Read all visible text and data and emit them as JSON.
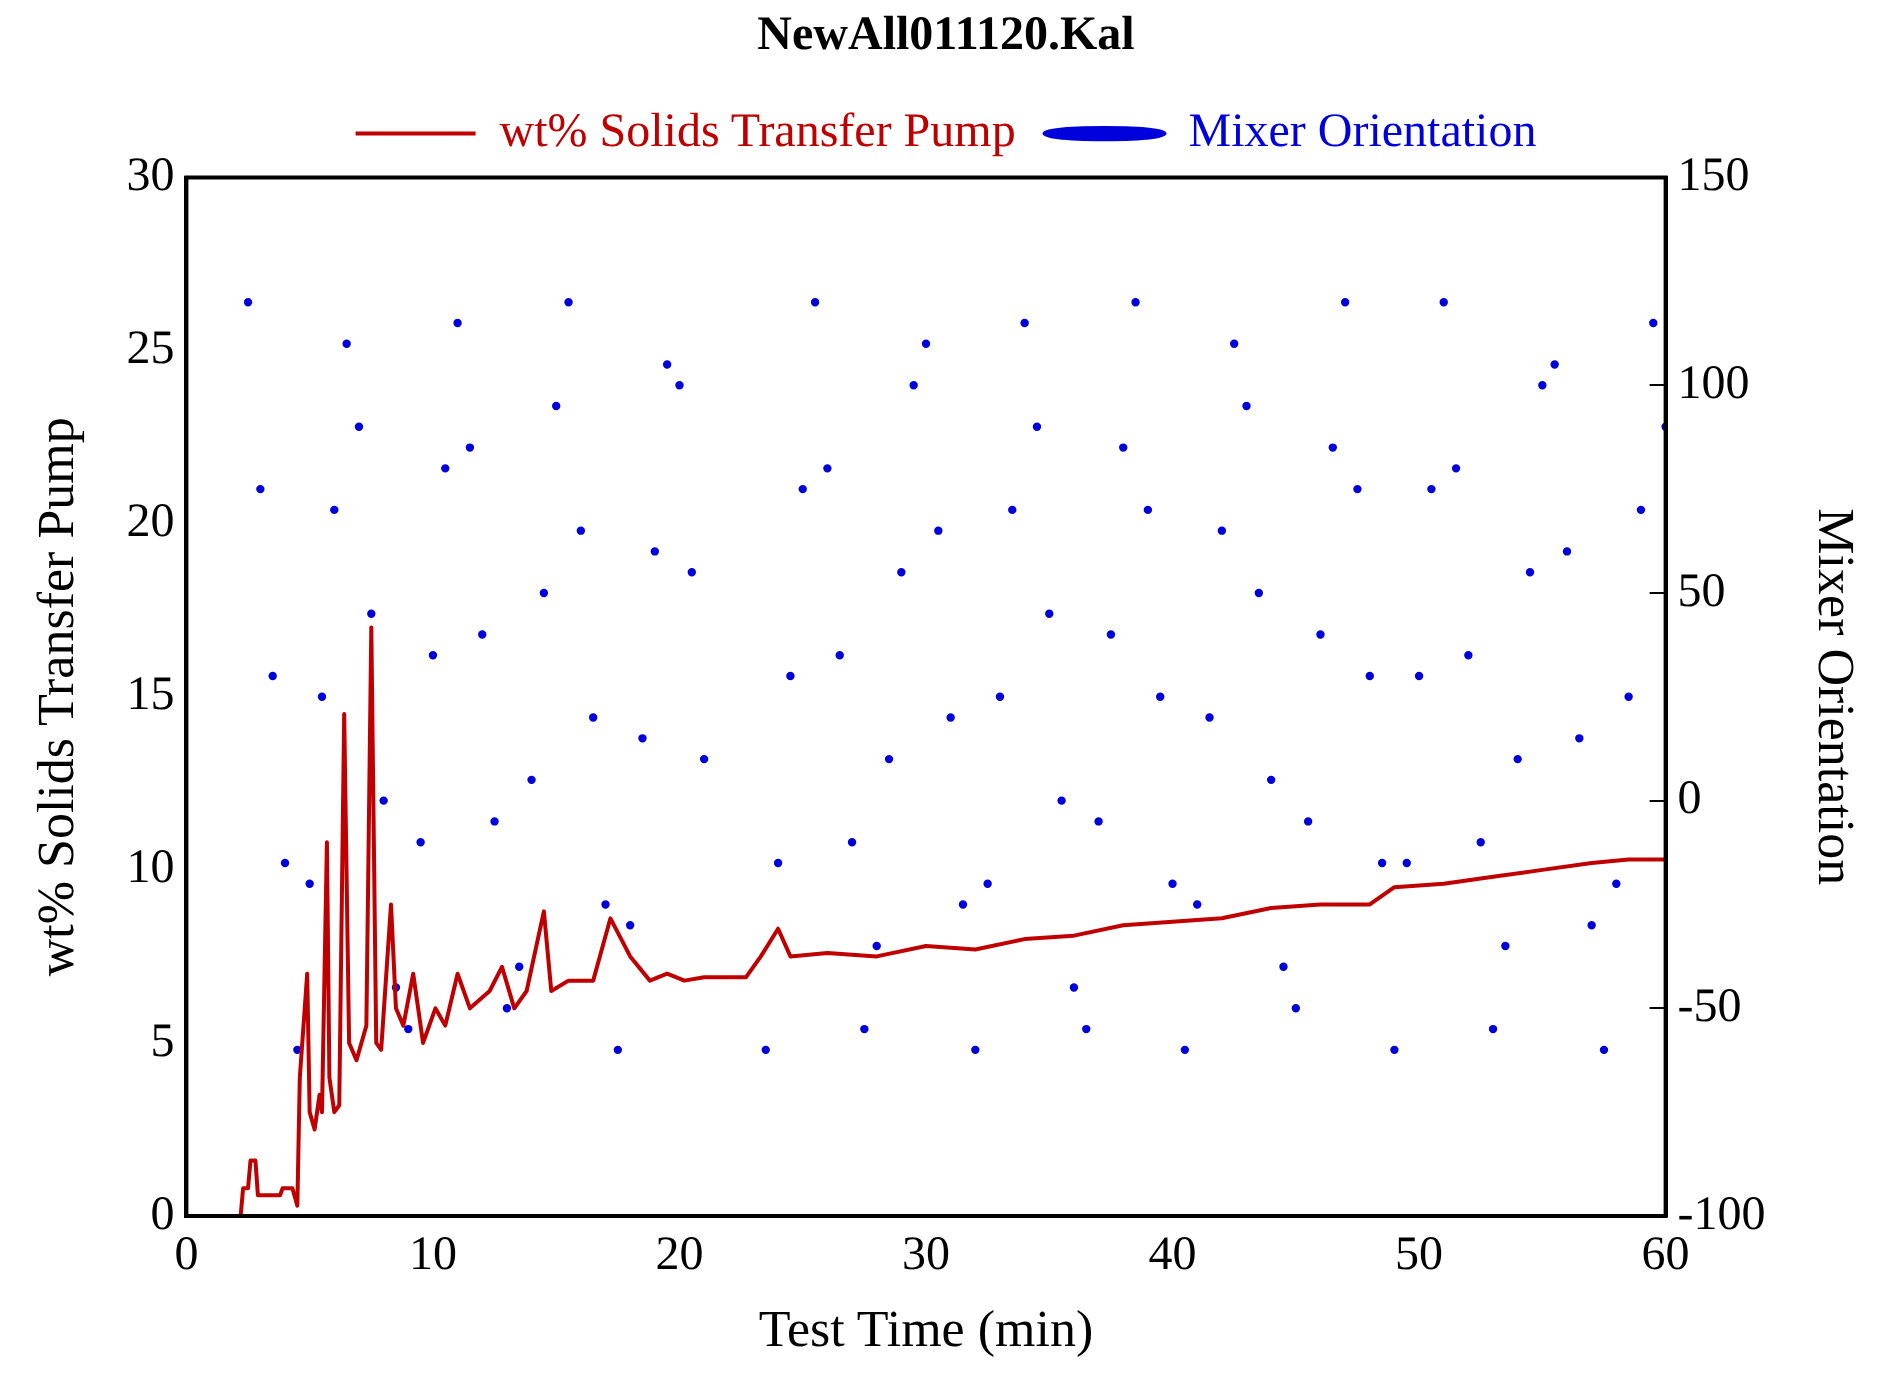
{
  "chart_data": {
    "type": "line",
    "title": "NewAll011120.Kal",
    "xlabel": "Test Time (min)",
    "ylabel": "wt% Solids Transfer Pump",
    "y2label": "Mixer Orientation",
    "xlim": [
      0,
      60
    ],
    "xticks": [
      0,
      10,
      20,
      30,
      40,
      50,
      60
    ],
    "ylim": [
      0,
      30
    ],
    "yticks": [
      0,
      5,
      10,
      15,
      20,
      25,
      30
    ],
    "y2lim": [
      -100,
      150
    ],
    "y2ticks": [
      -100,
      -50,
      0,
      50,
      100,
      150
    ],
    "grid": false,
    "legend": "top",
    "series": [
      {
        "name": "wt% Solids Transfer Pump",
        "color": "#c00000",
        "marker": "none",
        "line_style": "solid",
        "x": [
          2.0,
          2.2,
          2.3,
          2.5,
          2.6,
          2.8,
          2.9,
          3.8,
          3.9,
          4.3,
          4.5,
          4.6,
          4.9,
          5.0,
          5.2,
          5.4,
          5.5,
          5.7,
          5.8,
          6.0,
          6.2,
          6.4,
          6.6,
          6.9,
          7.3,
          7.5,
          7.7,
          7.9,
          8.3,
          8.5,
          8.8,
          9.2,
          9.6,
          10.1,
          10.5,
          11.0,
          11.5,
          12.3,
          12.8,
          13.3,
          13.8,
          14.5,
          14.8,
          15.5,
          16.5,
          17.2,
          18.0,
          18.8,
          19.5,
          20.2,
          21.0,
          22.7,
          23.3,
          24.0,
          24.5,
          26,
          28,
          30,
          32,
          34,
          36,
          38,
          40,
          42,
          44,
          46,
          48,
          49,
          51,
          53,
          55,
          57,
          58.5,
          60
        ],
        "values": [
          0,
          0,
          0.8,
          0.8,
          1.6,
          1.6,
          0.6,
          0.6,
          0.8,
          0.8,
          0.3,
          4,
          7,
          3,
          2.5,
          3.5,
          3,
          10.8,
          4,
          3,
          3.2,
          14.5,
          5,
          4.5,
          5.5,
          17,
          5,
          4.8,
          9,
          6,
          5.5,
          7,
          5,
          6,
          5.5,
          7,
          6,
          6.5,
          7.2,
          6,
          6.5,
          8.8,
          6.5,
          6.8,
          6.8,
          8.6,
          7.5,
          6.8,
          7,
          6.8,
          6.9,
          6.9,
          7.5,
          8.3,
          7.5,
          7.6,
          7.5,
          7.8,
          7.7,
          8,
          8.1,
          8.4,
          8.5,
          8.6,
          8.9,
          9,
          9,
          9.5,
          9.6,
          9.8,
          10,
          10.2,
          10.3,
          10.3
        ]
      },
      {
        "name": "Mixer Orientation",
        "type": "scatter",
        "axis": "y2",
        "color": "#0000dd",
        "marker": "circle",
        "x": [
          2.5,
          3,
          3.5,
          4,
          4.5,
          5,
          5.5,
          6,
          6.5,
          7,
          7.5,
          8,
          8.5,
          9,
          9.5,
          10,
          10.5,
          11,
          11.5,
          12,
          12.5,
          13,
          13.5,
          14,
          14.5,
          15,
          15.5,
          16,
          16.5,
          17,
          17.5,
          18,
          18.5,
          19,
          19.5,
          20,
          20.5,
          21,
          23.5,
          24,
          24.5,
          25,
          25.5,
          26,
          26.5,
          27,
          27.5,
          28,
          28.5,
          29,
          29.5,
          30,
          30.5,
          31,
          31.5,
          32,
          32.5,
          33,
          33.5,
          34,
          34.5,
          35,
          35.5,
          36,
          36.5,
          37,
          37.5,
          38,
          38.5,
          39,
          39.5,
          40,
          40.5,
          41,
          41.5,
          42,
          42.5,
          43,
          43.5,
          44,
          44.5,
          45,
          45.5,
          46,
          46.5,
          47,
          47.5,
          48,
          48.5,
          49,
          49.5,
          50,
          50.5,
          51,
          51.5,
          52,
          52.5,
          53,
          53.5,
          54,
          54.5,
          55,
          55.5,
          56,
          56.5,
          57,
          57.5,
          58,
          58.5,
          59,
          59.5,
          60
        ],
        "values": [
          120,
          75,
          30,
          -15,
          -60,
          -20,
          25,
          70,
          110,
          90,
          45,
          0,
          -45,
          -55,
          -10,
          35,
          80,
          115,
          85,
          40,
          -5,
          -50,
          -40,
          5,
          50,
          95,
          120,
          65,
          20,
          -25,
          -60,
          -30,
          15,
          60,
          105,
          100,
          55,
          10,
          -60,
          -15,
          30,
          75,
          120,
          80,
          35,
          -10,
          -55,
          -35,
          10,
          55,
          100,
          110,
          65,
          20,
          -25,
          -60,
          -20,
          25,
          70,
          115,
          90,
          45,
          0,
          -45,
          -55,
          -5,
          40,
          85,
          120,
          70,
          25,
          -20,
          -60,
          -25,
          20,
          65,
          110,
          95,
          50,
          5,
          -40,
          -50,
          -5,
          40,
          85,
          120,
          75,
          30,
          -15,
          -60,
          -15,
          30,
          75,
          120,
          80,
          35,
          -10,
          -55,
          -35,
          10,
          55,
          100,
          105,
          60,
          15,
          -30,
          -60,
          -20,
          25,
          70,
          115,
          90
        ]
      }
    ]
  }
}
